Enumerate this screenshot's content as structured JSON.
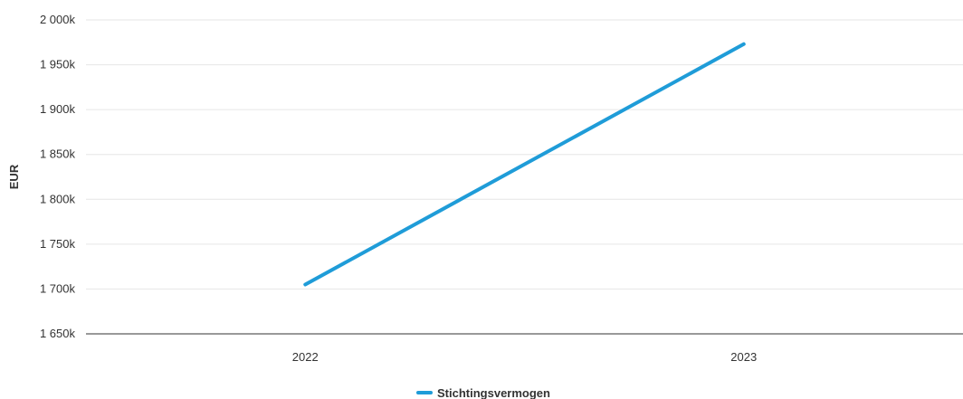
{
  "chart_data": {
    "type": "line",
    "title": "",
    "xlabel": "",
    "ylabel": "EUR",
    "categories": [
      "2022",
      "2023"
    ],
    "series": [
      {
        "name": "Stichtingsvermogen",
        "values": [
          1705000,
          1973000
        ],
        "color": "#1f9cd8"
      }
    ],
    "ylim": [
      1650000,
      2000000
    ],
    "yticks": [
      1650000,
      1700000,
      1750000,
      1800000,
      1850000,
      1900000,
      1950000,
      2000000
    ],
    "ytick_labels": [
      "1 650k",
      "1 700k",
      "1 750k",
      "1 800k",
      "1 850k",
      "1 900k",
      "1 950k",
      "2 000k"
    ],
    "grid": true,
    "legend_position": "bottom-center",
    "colors": {
      "grid": "#e6e6e6",
      "axis": "#333333",
      "text": "#333333"
    }
  }
}
